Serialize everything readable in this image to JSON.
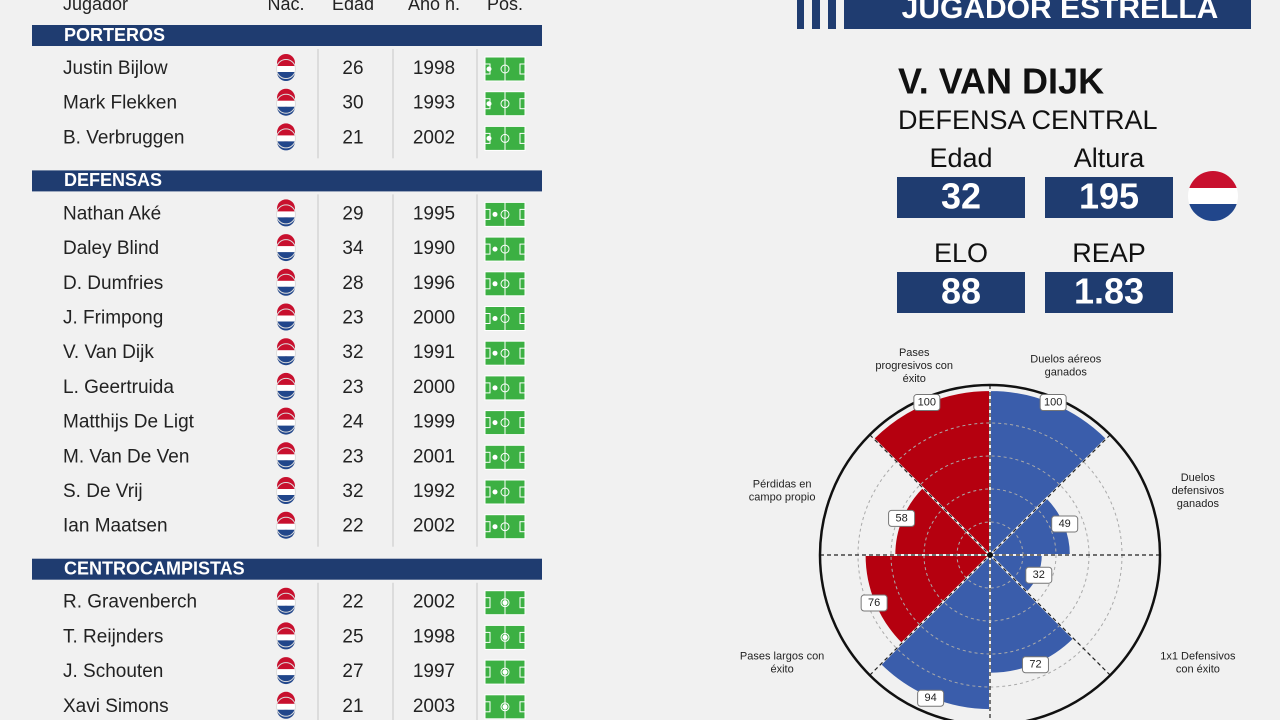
{
  "table": {
    "columns": [
      "Jugador",
      "Nac.",
      "Edad",
      "Año n.",
      "Pos."
    ],
    "groups": [
      {
        "title": "PORTEROS",
        "rows": [
          {
            "name": "Justin Bijlow",
            "age": 26,
            "born": 1998
          },
          {
            "name": "Mark Flekken",
            "age": 30,
            "born": 1993
          },
          {
            "name": "B. Verbruggen",
            "age": 21,
            "born": 2002
          }
        ]
      },
      {
        "title": "DEFENSAS",
        "rows": [
          {
            "name": "Nathan Aké",
            "age": 29,
            "born": 1995
          },
          {
            "name": "Daley Blind",
            "age": 34,
            "born": 1990
          },
          {
            "name": "D. Dumfries",
            "age": 28,
            "born": 1996
          },
          {
            "name": "J. Frimpong",
            "age": 23,
            "born": 2000
          },
          {
            "name": "V. Van Dijk",
            "age": 32,
            "born": 1991
          },
          {
            "name": "L. Geertruida",
            "age": 23,
            "born": 2000
          },
          {
            "name": "Matthijs De Ligt",
            "age": 24,
            "born": 1999
          },
          {
            "name": "M. Van De Ven",
            "age": 23,
            "born": 2001
          },
          {
            "name": "S. De Vrij",
            "age": 32,
            "born": 1992
          },
          {
            "name": "Ian Maatsen",
            "age": 22,
            "born": 2002
          }
        ]
      },
      {
        "title": "CENTROCAMPISTAS",
        "rows": [
          {
            "name": "R. Gravenberch",
            "age": 22,
            "born": 2002
          },
          {
            "name": "T. Reijnders",
            "age": 25,
            "born": 1998
          },
          {
            "name": "J. Schouten",
            "age": 27,
            "born": 1997
          },
          {
            "name": "Xavi Simons",
            "age": 21,
            "born": 2003
          }
        ]
      }
    ]
  },
  "star": {
    "banner": "JUGADOR ESTRELLA",
    "name": "V. VAN DIJK",
    "role": "DEFENSA CENTRAL",
    "stats": [
      {
        "label": "Edad",
        "value": 32
      },
      {
        "label": "Altura",
        "value": 195
      },
      {
        "label": "ELO",
        "value": 88
      },
      {
        "label": "REAP",
        "value": 1.83
      }
    ]
  },
  "chart_data": {
    "type": "polar",
    "categories": [
      "Duelos aéreos ganados",
      "Duelos defensivos ganados",
      "1x1 Defensivos con éxito",
      null,
      null,
      "Pases largos con éxito",
      "Pérdidas en campo propio",
      "Pases progresivos con éxito"
    ],
    "values": [
      100,
      49,
      32,
      72,
      94,
      76,
      58,
      100
    ],
    "colors": [
      "#3a5dab",
      "#3a5dab",
      "#3a5dab",
      "#3a5dab",
      "#3a5dab",
      "#b5000f",
      "#b5000f",
      "#b5000f"
    ],
    "ylim": [
      0,
      100
    ],
    "grid": true
  }
}
